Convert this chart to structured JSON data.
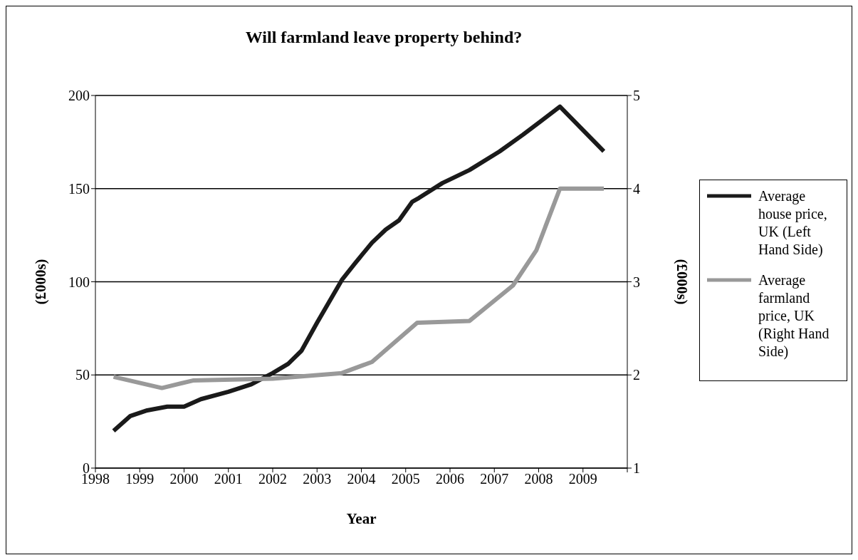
{
  "chart_data": {
    "type": "line",
    "title": "Will farmland leave property behind?",
    "xlabel": "Year",
    "ylabel": "(£000s)",
    "y2label": "(£000s)",
    "xlim": [
      1998,
      2010
    ],
    "xticks": [
      1998,
      1999,
      2000,
      2001,
      2002,
      2003,
      2004,
      2005,
      2006,
      2007,
      2008,
      2009,
      {
        "value": 2010,
        "label": null
      }
    ],
    "ylim": [
      0,
      200
    ],
    "yticks": [
      0,
      50,
      100,
      150,
      200
    ],
    "y2lim": [
      1,
      5
    ],
    "y2ticks": [
      1,
      2,
      3,
      4,
      5
    ],
    "grid": "y",
    "legend": "right",
    "marker": "none",
    "line_style": "solid",
    "series": [
      {
        "name": "Average house price, UK (Left Hand Side)",
        "color": "#1a1a1a",
        "x": [
          1998.41,
          1998.79,
          1999.17,
          1999.62,
          2000,
          2000.38,
          2001,
          2001.52,
          2002,
          2002.35,
          2002.65,
          2003,
          2003.56,
          2003.86,
          2004.24,
          2004.55,
          2004.85,
          2005.15,
          2005.3,
          2005.83,
          2006.44,
          2007.12,
          2007.65,
          2008.48,
          2009.47
        ],
        "values": [
          20,
          28,
          31,
          33,
          33,
          37,
          41,
          45,
          51,
          56,
          63,
          78,
          101,
          110,
          121,
          128,
          133,
          143,
          145,
          153,
          160,
          170,
          179,
          194,
          170
        ]
      },
      {
        "name": "Average farmland price, UK (Right Hand Side)",
        "color": "#999999",
        "axis": "y2",
        "x": [
          1998.41,
          1999.5,
          2000.2,
          2002,
          2003.56,
          2004.24,
          2005.26,
          2006.44,
          2007.42,
          2007.95,
          2008.48,
          2009.47
        ],
        "values": [
          1.98,
          1.86,
          1.94,
          1.96,
          2.02,
          2.14,
          2.56,
          2.58,
          2.96,
          3.34,
          4.0,
          4.0
        ]
      }
    ]
  }
}
